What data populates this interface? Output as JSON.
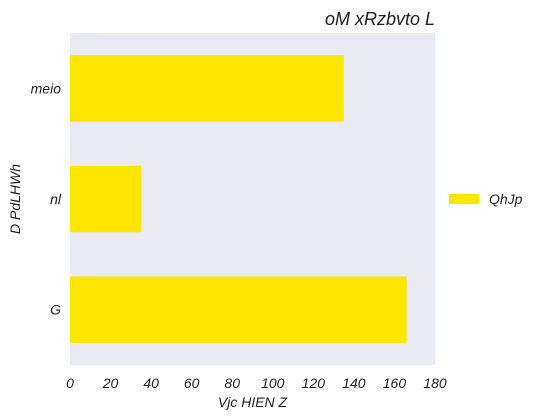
{
  "chart_data": {
    "type": "bar",
    "orientation": "horizontal",
    "title": "oM xRzbvto L",
    "xlabel": "Vjc   HIEN Z",
    "ylabel": "D PdLHWh",
    "categories": [
      "meio",
      "nl",
      "G"
    ],
    "series": [
      {
        "name": "QhJp",
        "values": [
          135,
          35,
          166
        ],
        "color": "#FFE600"
      }
    ],
    "xlim": [
      0,
      180
    ],
    "xticks": [
      0,
      20,
      40,
      60,
      80,
      100,
      120,
      140,
      160,
      180
    ],
    "grid": false,
    "background_color": "#EAEAF2",
    "legend_position": "right"
  }
}
